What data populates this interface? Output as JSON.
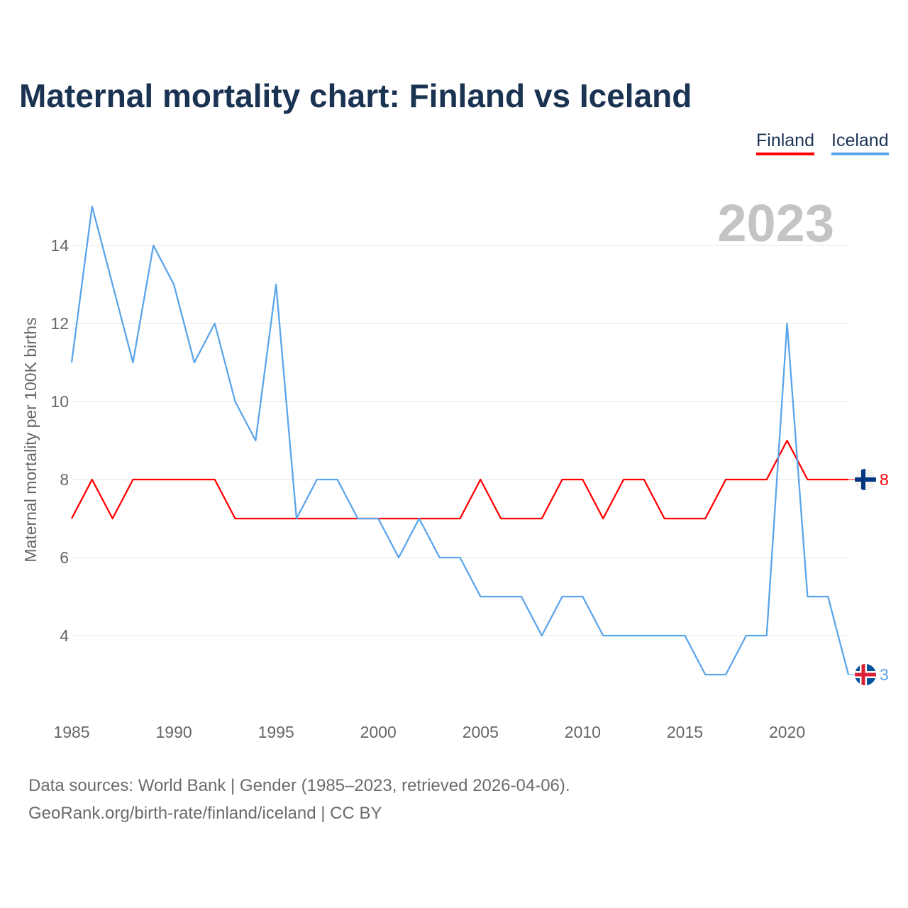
{
  "title": "Maternal mortality chart: Finland vs Iceland",
  "year_display": "2023",
  "footer": {
    "line1": "Data sources: World Bank | Gender (1985–2023, retrieved 2026-04-06).",
    "line2": "GeoRank.org/birth-rate/finland/iceland | CC BY"
  },
  "chart_data": {
    "type": "line",
    "title": "Maternal mortality chart: Finland vs Iceland",
    "xlabel": "",
    "ylabel": "Maternal mortality per 100K births",
    "xlim": [
      1985,
      2023
    ],
    "ylim": [
      2,
      15
    ],
    "xticks": [
      1985,
      1990,
      1995,
      2000,
      2005,
      2010,
      2015,
      2020
    ],
    "yticks": [
      4,
      6,
      8,
      10,
      12,
      14
    ],
    "grid": true,
    "legend_position": "top-right",
    "x": [
      1985,
      1986,
      1987,
      1988,
      1989,
      1990,
      1991,
      1992,
      1993,
      1994,
      1995,
      1996,
      1997,
      1998,
      1999,
      2000,
      2001,
      2002,
      2003,
      2004,
      2005,
      2006,
      2007,
      2008,
      2009,
      2010,
      2011,
      2012,
      2013,
      2014,
      2015,
      2016,
      2017,
      2018,
      2019,
      2020,
      2021,
      2022,
      2023
    ],
    "series": [
      {
        "name": "Finland",
        "color": "#ff0000",
        "end_label": "8",
        "values": [
          7,
          8,
          7,
          8,
          8,
          8,
          8,
          8,
          7,
          7,
          7,
          7,
          7,
          7,
          7,
          7,
          7,
          7,
          7,
          7,
          8,
          7,
          7,
          7,
          8,
          8,
          7,
          8,
          8,
          7,
          7,
          7,
          8,
          8,
          8,
          9,
          8,
          8,
          8
        ]
      },
      {
        "name": "Iceland",
        "color": "#5aa5ea",
        "end_label": "3",
        "values": [
          11,
          15,
          13,
          11,
          14,
          13,
          11,
          12,
          10,
          9,
          13,
          7,
          8,
          8,
          7,
          7,
          6,
          7,
          6,
          6,
          5,
          5,
          5,
          4,
          5,
          5,
          4,
          4,
          4,
          4,
          4,
          3,
          3,
          4,
          4,
          12,
          5,
          5,
          3
        ]
      }
    ]
  }
}
